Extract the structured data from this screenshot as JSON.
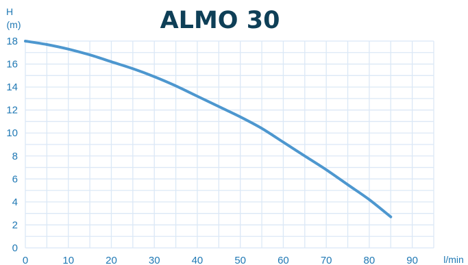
{
  "chart_data": {
    "type": "line",
    "title": "ALMO 30",
    "ylabel": "H",
    "ylabel_unit": "(m)",
    "xlabel": "l/min",
    "xlim": [
      0,
      95
    ],
    "ylim": [
      0,
      18
    ],
    "x_ticks": [
      "0",
      "10",
      "20",
      "30",
      "40",
      "50",
      "60",
      "70",
      "80",
      "90"
    ],
    "y_ticks": [
      "0",
      "2",
      "4",
      "6",
      "8",
      "10",
      "12",
      "14",
      "16",
      "18"
    ],
    "grid": true,
    "line_color": "#4d97cf",
    "title_color": "#0e3f57",
    "tick_color": "#1f78b4",
    "grid_color": "#dbe8f6",
    "series": [
      {
        "x": [
          0,
          5,
          10,
          15,
          20,
          25,
          30,
          35,
          40,
          45,
          50,
          55,
          60,
          65,
          70,
          75,
          80,
          85
        ],
        "values": [
          18.0,
          17.7,
          17.3,
          16.8,
          16.2,
          15.6,
          14.9,
          14.1,
          13.2,
          12.3,
          11.4,
          10.4,
          9.2,
          8.0,
          6.8,
          5.5,
          4.2,
          2.7
        ]
      }
    ]
  }
}
